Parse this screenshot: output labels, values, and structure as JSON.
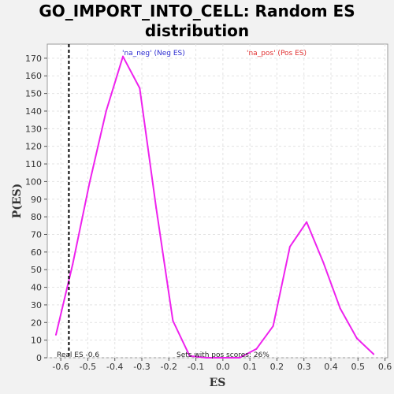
{
  "chart_data": {
    "type": "line",
    "title_line1": "GO_IMPORT_INTO_CELL: Random ES",
    "title_line2": "distribution",
    "xlabel": "ES",
    "ylabel": "P(ES)",
    "xlim": [
      -0.65,
      0.61
    ],
    "ylim": [
      0,
      178
    ],
    "x_ticks": [
      "-0.6",
      "-0.5",
      "-0.4",
      "-0.3",
      "-0.2",
      "-0.1",
      "0.0",
      "0.1",
      "0.2",
      "0.3",
      "0.4",
      "0.5",
      "0.6"
    ],
    "y_ticks": [
      "0",
      "10",
      "20",
      "30",
      "40",
      "50",
      "60",
      "70",
      "80",
      "90",
      "100",
      "110",
      "120",
      "130",
      "140",
      "150",
      "160",
      "170"
    ],
    "grid": true,
    "series": [
      {
        "color": "#ee22ee",
        "x": [
          -0.618,
          -0.556,
          -0.494,
          -0.432,
          -0.37,
          -0.308,
          -0.247,
          -0.185,
          -0.123,
          -0.061,
          0.0,
          0.062,
          0.124,
          0.186,
          0.248,
          0.31,
          0.372,
          0.434,
          0.496,
          0.558
        ],
        "y": [
          13,
          53,
          99,
          140,
          171,
          153,
          85,
          21,
          1,
          0,
          0,
          0,
          5,
          18,
          63,
          77,
          54,
          28,
          11,
          2
        ]
      }
    ],
    "real_es": {
      "value": -0.57,
      "label": "Real ES -0.6"
    },
    "legend": {
      "neg": {
        "label": "'na_neg' (Neg ES)",
        "color": "#2b2bd0"
      },
      "pos": {
        "label": "'na_pos' (Pos ES)",
        "color": "#e03030"
      }
    },
    "pos_score_note": "Sets with pos scores: 26%"
  }
}
